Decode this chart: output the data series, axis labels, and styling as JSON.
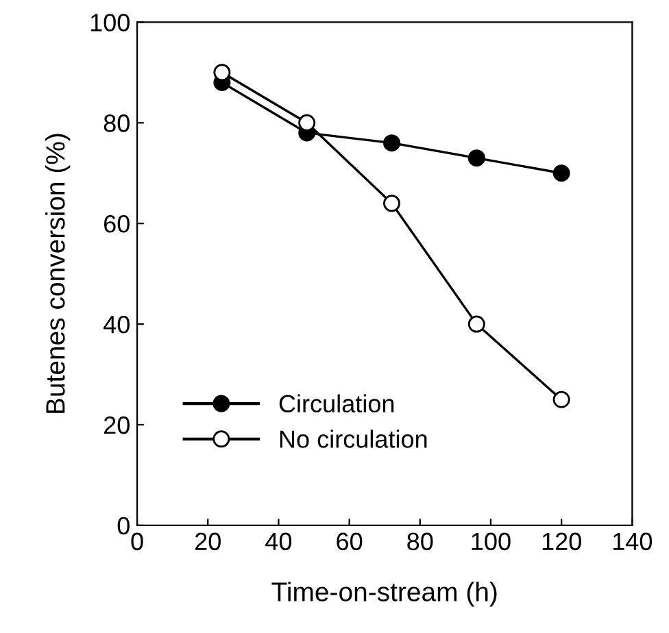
{
  "chart_data": {
    "type": "line",
    "xlabel": "Time-on-stream (h)",
    "ylabel": "Butenes conversion (%)",
    "x": [
      24,
      48,
      72,
      96,
      120
    ],
    "series": [
      {
        "name": "Circulation",
        "color": "#000000",
        "values": [
          88,
          78,
          76,
          73,
          70
        ]
      },
      {
        "name": "No circulation",
        "color": "#ffffff",
        "values": [
          90,
          80,
          64,
          40,
          25
        ]
      }
    ],
    "xlim": [
      0,
      140
    ],
    "xticks": [
      0,
      20,
      40,
      60,
      80,
      100,
      120,
      140
    ],
    "ylim": [
      0,
      100
    ],
    "yticks": [
      0,
      20,
      40,
      60,
      80,
      100
    ],
    "marker": "circle",
    "line_style": "solid",
    "legend": "bottom left",
    "grid": false
  }
}
